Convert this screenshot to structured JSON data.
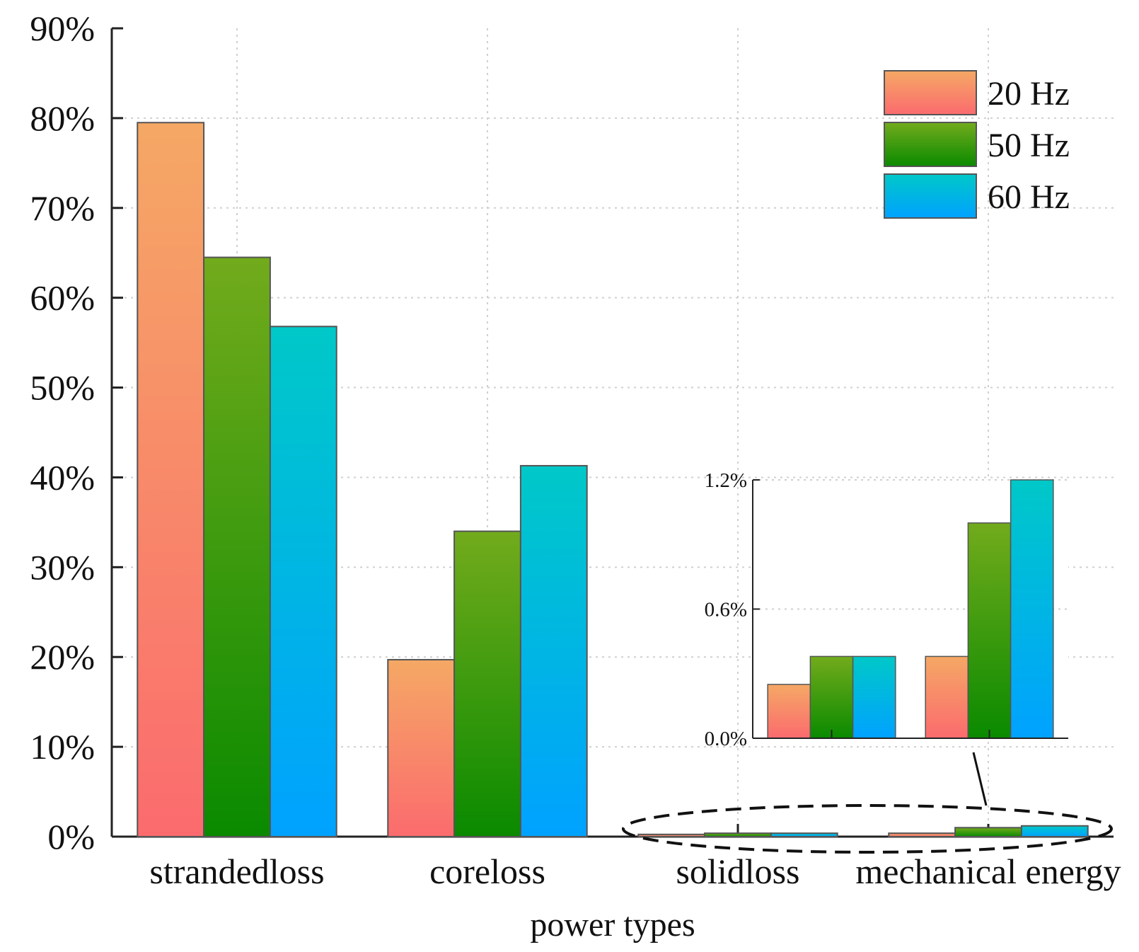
{
  "chart_data": {
    "type": "bar",
    "title": "",
    "xlabel": "power types",
    "ylabel": "",
    "ylim": [
      0,
      90
    ],
    "yticks": [
      "0%",
      "10%",
      "20%",
      "30%",
      "40%",
      "50%",
      "60%",
      "70%",
      "80%",
      "90%"
    ],
    "grid": true,
    "legend_position": "top-right",
    "categories": [
      "strandedloss",
      "coreloss",
      "solidloss",
      "mechanical energy"
    ],
    "series": [
      {
        "name": "20 Hz",
        "values": [
          79.5,
          19.7,
          0.25,
          0.38
        ],
        "color_top": "#f5a865",
        "color_bottom": "#fb6b6e"
      },
      {
        "name": "50 Hz",
        "values": [
          64.5,
          34.0,
          0.38,
          1.0
        ],
        "color_top": "#72ab1c",
        "color_bottom": "#0a8a00"
      },
      {
        "name": "60 Hz",
        "values": [
          56.8,
          41.3,
          0.38,
          1.2
        ],
        "color_top": "#00c8c8",
        "color_bottom": "#00a2ff"
      }
    ],
    "inset": {
      "type": "bar",
      "categories": [
        "solidloss",
        "mechanical energy"
      ],
      "ylim": [
        0,
        1.2
      ],
      "yticks": [
        "0.0%",
        "0.6%",
        "1.2%"
      ],
      "annotation": "dashed ellipse highlighting the solidloss and mechanical energy bars, enlarged in the inset"
    }
  }
}
